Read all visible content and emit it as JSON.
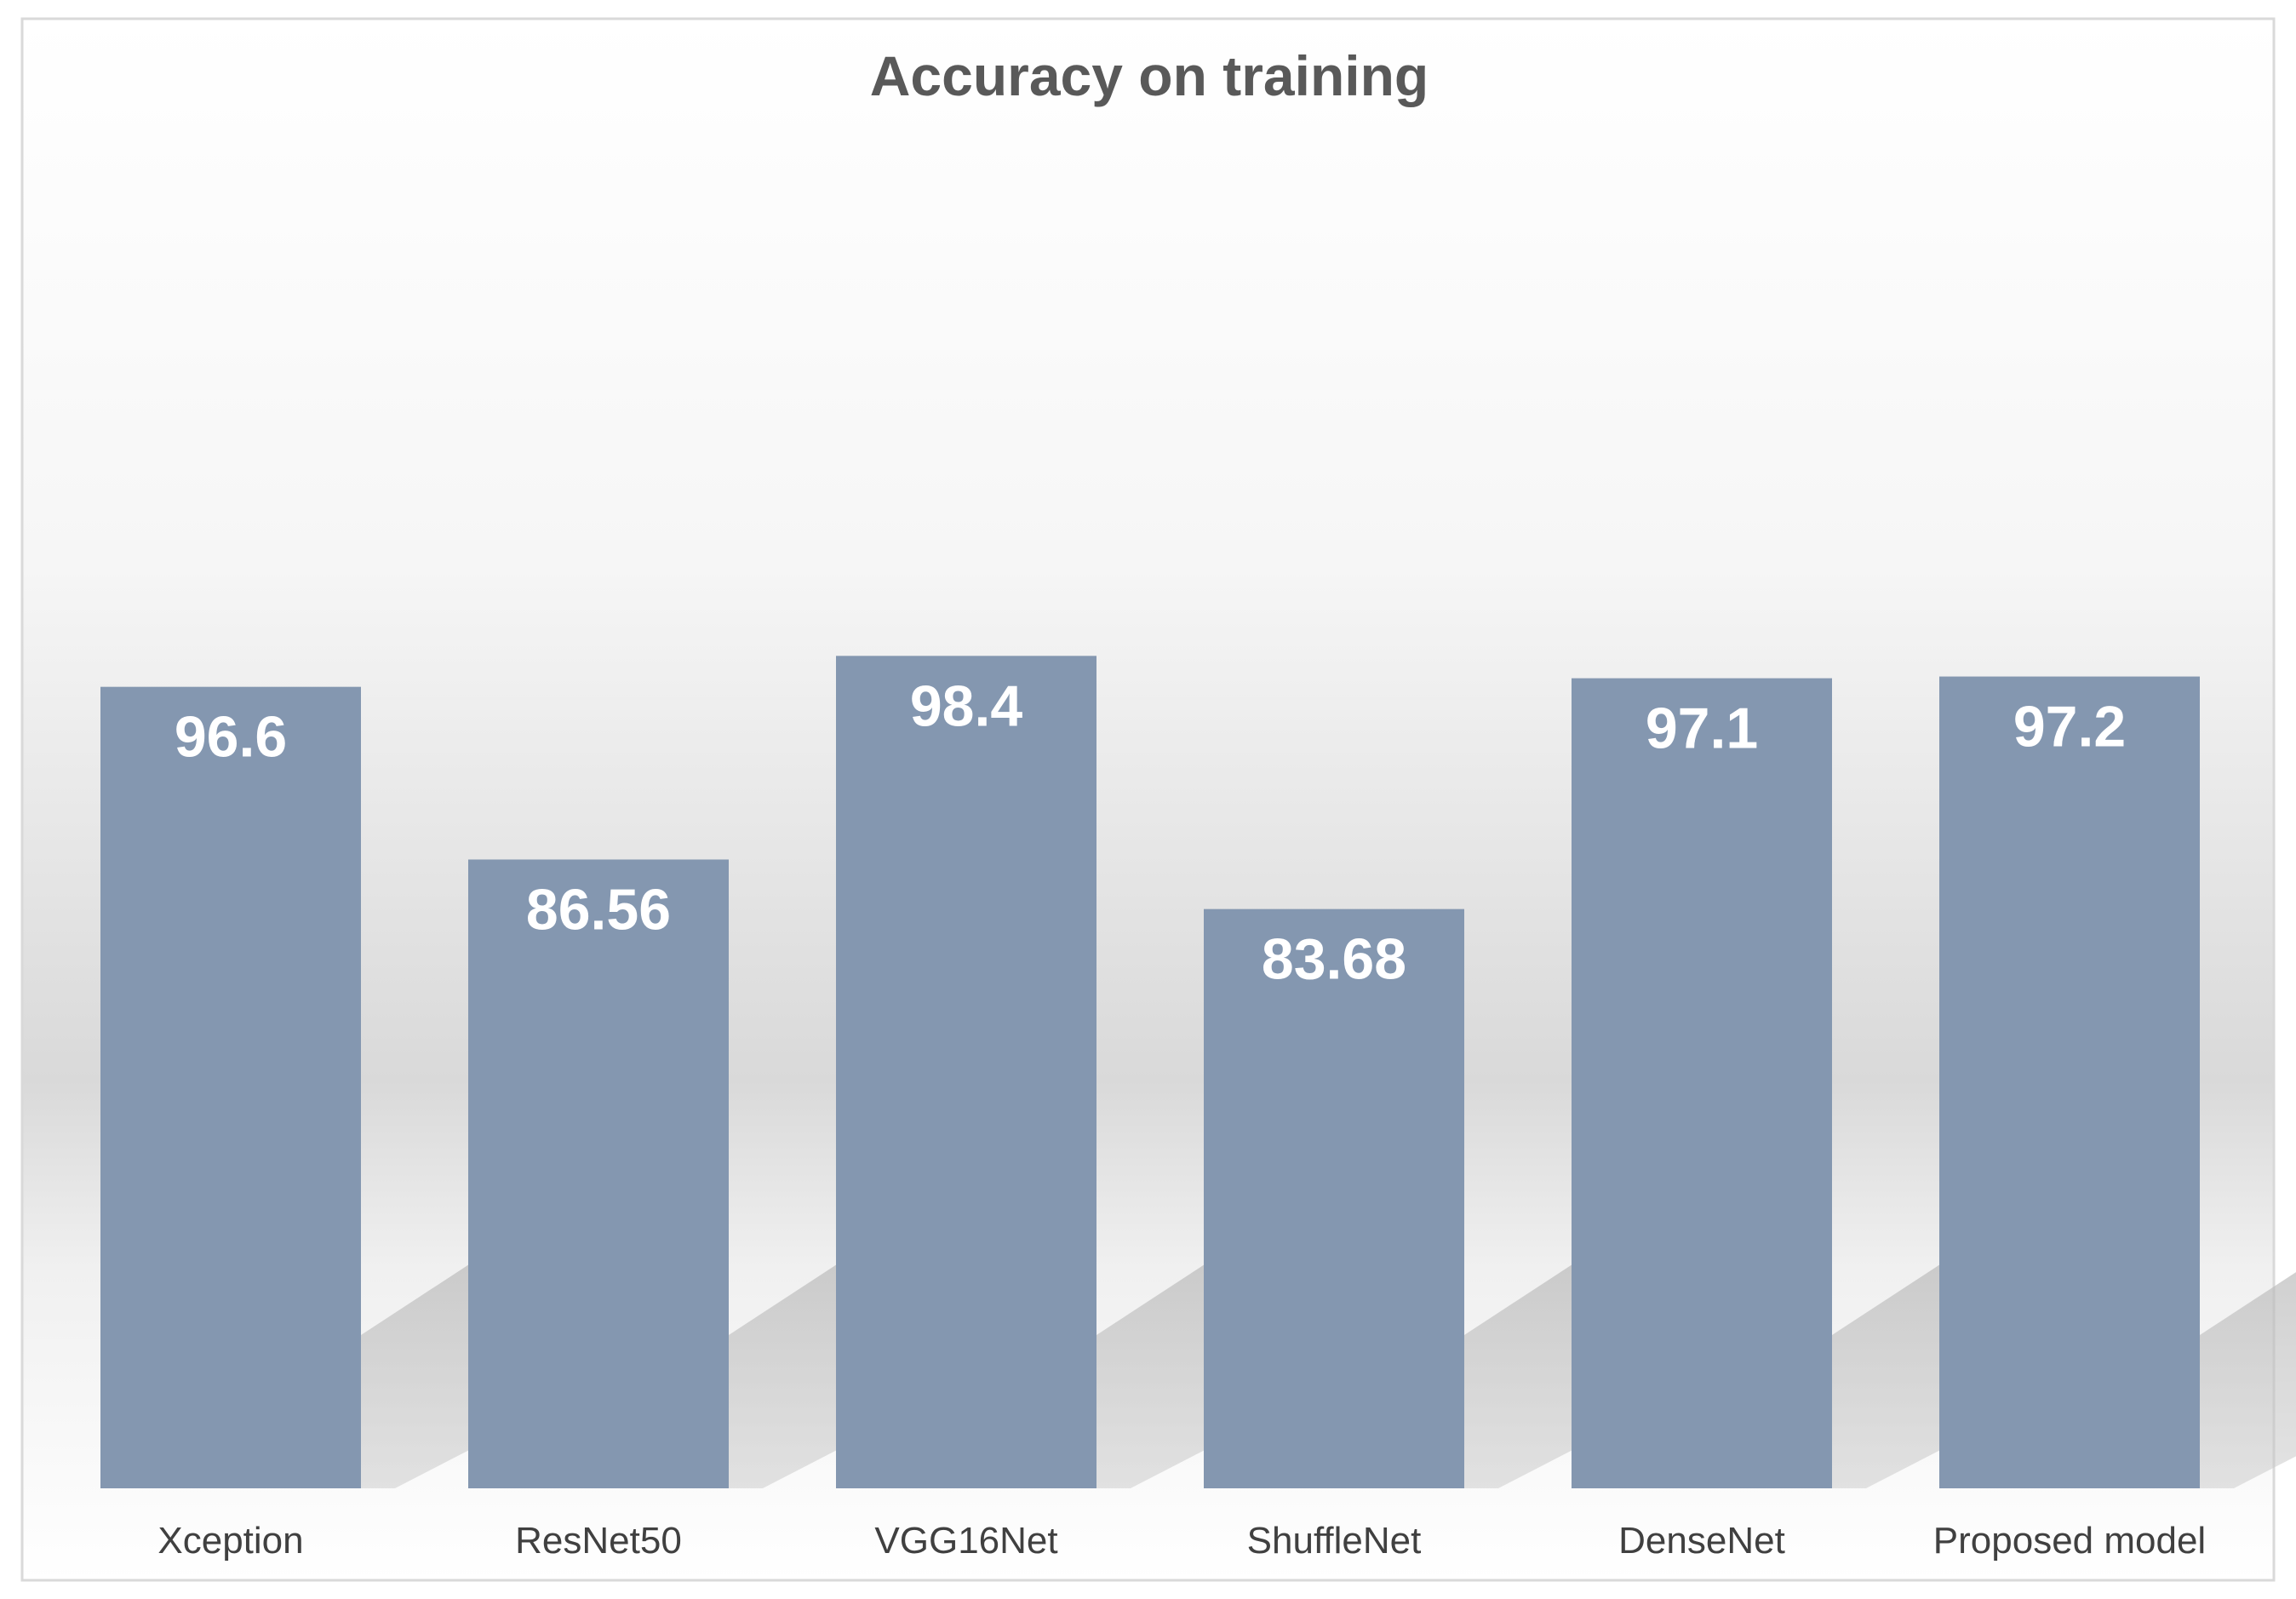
{
  "chart_data": {
    "type": "bar",
    "title": "Accuracy on training",
    "categories": [
      "Xception",
      "ResNet50",
      "VGG16Net",
      "ShuffleNet",
      "DenseNet",
      "Proposed model"
    ],
    "values": [
      96.6,
      86.56,
      98.4,
      83.68,
      97.1,
      97.2
    ],
    "data_labels": [
      "96.6",
      "86.56",
      "98.4",
      "83.68",
      "97.1",
      "97.2"
    ],
    "xlabel": "",
    "ylabel": "",
    "ylim": [
      50,
      100
    ],
    "grid": false,
    "legend": "none",
    "bar_color": "#8497B0",
    "label_color": "#FFFFFF",
    "title_color": "#595959",
    "category_label_color": "#404040"
  }
}
